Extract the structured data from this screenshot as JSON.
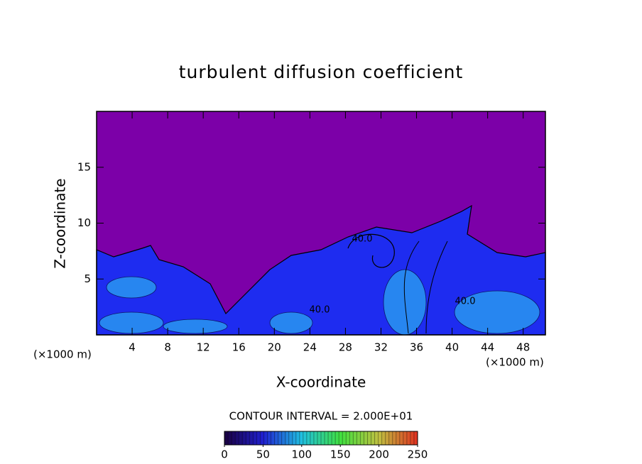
{
  "chart_data": {
    "type": "contour",
    "title": "turbulent diffusion coefficient",
    "x_label": "X-coordinate",
    "y_label": "Z-coordinate",
    "x_unit": "(×1000 m)",
    "y_unit": "(×1000 m)",
    "xlim": [
      0,
      50.5
    ],
    "ylim": [
      0,
      20
    ],
    "xticks": [
      4,
      8,
      12,
      16,
      20,
      24,
      28,
      32,
      36,
      40,
      44,
      48
    ],
    "yticks": [
      5,
      10,
      15
    ],
    "contour_interval_text": "CONTOUR INTERVAL = 2.000E+01",
    "contour_labels": [
      {
        "value": 40,
        "label": "40.0"
      },
      {
        "value": 40,
        "label": "40.0"
      },
      {
        "value": 40,
        "label": "40.0"
      }
    ],
    "colorbar": {
      "range": [
        0,
        250
      ],
      "ticks": [
        0,
        50,
        100,
        150,
        200,
        250
      ],
      "colors": [
        "#1a0040",
        "#2020d0",
        "#20c0e0",
        "#40e040",
        "#c0c040",
        "#e03020"
      ]
    },
    "background_color": "#7c00a8",
    "field_color": "#1e2cf0",
    "high_color": "#30d0f0"
  }
}
